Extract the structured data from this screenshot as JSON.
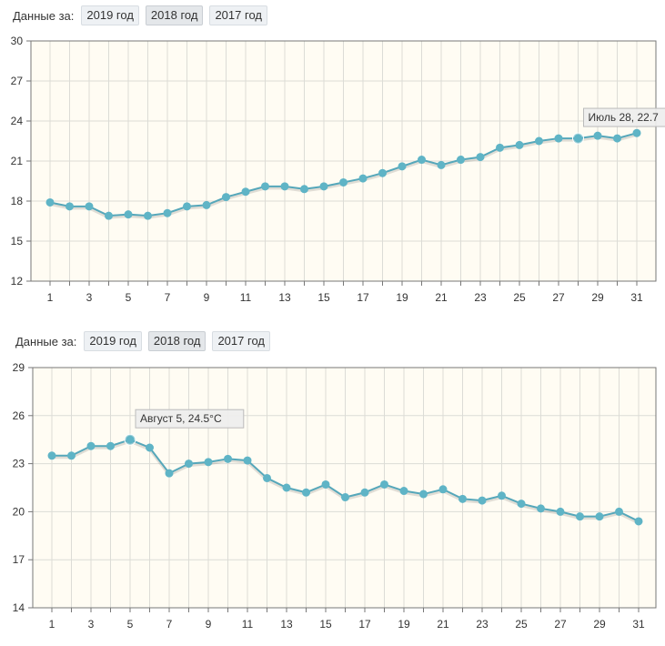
{
  "colors": {
    "plot_bg": "#fffcf3",
    "grid": "#dcdcd6",
    "axis": "#777777",
    "line": "#55a7ba",
    "marker": "#5fb4c6",
    "tooltip_bg": "#eeeeee",
    "tooltip_border": "#bbbbbb"
  },
  "panels": [
    {
      "toolbar": {
        "label": "Данные за:",
        "years": [
          {
            "label": "2019 год",
            "active": false
          },
          {
            "label": "2018 год",
            "active": true
          },
          {
            "label": "2017 год",
            "active": false
          }
        ]
      },
      "tooltip": {
        "text": "Июль 28, 22.7",
        "index": 27
      }
    },
    {
      "toolbar": {
        "label": "Данные за:",
        "years": [
          {
            "label": "2019 год",
            "active": false
          },
          {
            "label": "2018 год",
            "active": true
          },
          {
            "label": "2017 год",
            "active": false
          }
        ]
      },
      "tooltip": {
        "text": "Август 5, 24.5°C",
        "index": 4
      }
    }
  ],
  "chart_data": [
    {
      "type": "line",
      "title": "",
      "xlabel": "",
      "ylabel": "",
      "x": [
        1,
        2,
        3,
        4,
        5,
        6,
        7,
        8,
        9,
        10,
        11,
        12,
        13,
        14,
        15,
        16,
        17,
        18,
        19,
        20,
        21,
        22,
        23,
        24,
        25,
        26,
        27,
        28,
        29,
        30,
        31
      ],
      "x_tick_labels": [
        "1",
        "3",
        "5",
        "7",
        "9",
        "11",
        "13",
        "15",
        "17",
        "19",
        "21",
        "23",
        "25",
        "27",
        "29",
        "31"
      ],
      "y_tick_labels": [
        "12",
        "15",
        "18",
        "21",
        "24",
        "27",
        "30"
      ],
      "ylim": [
        12,
        30
      ],
      "grid": true,
      "series": [
        {
          "values": [
            17.9,
            17.6,
            17.6,
            16.9,
            17.0,
            16.9,
            17.1,
            17.6,
            17.7,
            18.3,
            18.7,
            19.1,
            19.1,
            18.9,
            19.1,
            19.4,
            19.7,
            20.1,
            20.6,
            21.1,
            20.7,
            21.1,
            21.3,
            22.0,
            22.2,
            22.5,
            22.7,
            22.7,
            22.9,
            22.7,
            23.1
          ]
        }
      ]
    },
    {
      "type": "line",
      "title": "",
      "xlabel": "",
      "ylabel": "",
      "x": [
        1,
        2,
        3,
        4,
        5,
        6,
        7,
        8,
        9,
        10,
        11,
        12,
        13,
        14,
        15,
        16,
        17,
        18,
        19,
        20,
        21,
        22,
        23,
        24,
        25,
        26,
        27,
        28,
        29,
        30,
        31
      ],
      "x_tick_labels": [
        "1",
        "3",
        "5",
        "7",
        "9",
        "11",
        "13",
        "15",
        "17",
        "19",
        "21",
        "23",
        "25",
        "27",
        "29",
        "31"
      ],
      "y_tick_labels": [
        "14",
        "17",
        "20",
        "23",
        "26",
        "29"
      ],
      "ylim": [
        14,
        29
      ],
      "grid": true,
      "series": [
        {
          "values": [
            23.5,
            23.5,
            24.1,
            24.1,
            24.5,
            24.0,
            22.4,
            23.0,
            23.1,
            23.3,
            23.2,
            22.1,
            21.5,
            21.2,
            21.7,
            20.9,
            21.2,
            21.7,
            21.3,
            21.1,
            21.4,
            20.8,
            20.7,
            21.0,
            20.5,
            20.2,
            20.0,
            19.7,
            19.7,
            20.0,
            19.4
          ]
        }
      ]
    }
  ]
}
